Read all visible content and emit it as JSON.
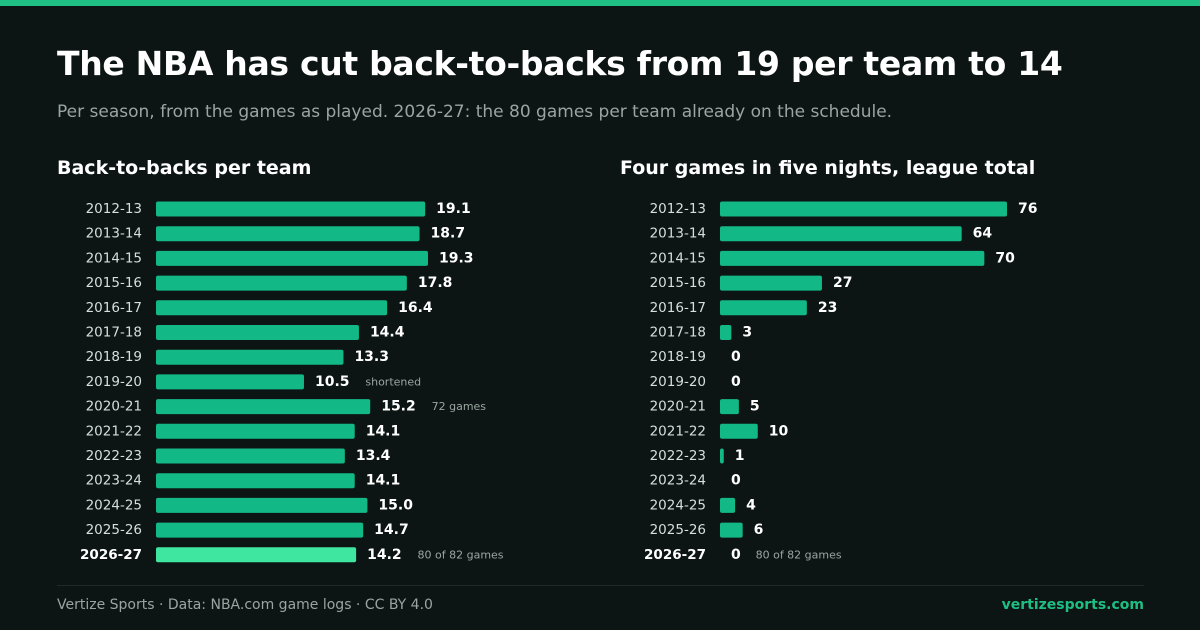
{
  "title": "The NBA has cut back-to-backs from 19 per team to 14",
  "subtitle": "Per season, from the games as played. 2026-27: the 80 games per team already on the schedule.",
  "footer": {
    "credit": "Vertize Sports · Data: NBA.com game logs · CC BY 4.0",
    "site": "vertizesports.com"
  },
  "colors": {
    "bar": "#12b886",
    "highlight": "#3ee6a0",
    "accent": "#1fbf83",
    "background": "#0c1513"
  },
  "chart_data": [
    {
      "type": "bar",
      "orientation": "horizontal",
      "title": "Back-to-backs per team",
      "categories": [
        "2012-13",
        "2013-14",
        "2014-15",
        "2015-16",
        "2016-17",
        "2017-18",
        "2018-19",
        "2019-20",
        "2020-21",
        "2021-22",
        "2022-23",
        "2023-24",
        "2024-25",
        "2025-26",
        "2026-27"
      ],
      "values": [
        19.1,
        18.7,
        19.3,
        17.8,
        16.4,
        14.4,
        13.3,
        10.5,
        15.2,
        14.1,
        13.4,
        14.1,
        15.0,
        14.7,
        14.2
      ],
      "value_labels": [
        "19.1",
        "18.7",
        "19.3",
        "17.8",
        "16.4",
        "14.4",
        "13.3",
        "10.5",
        "15.2",
        "14.1",
        "13.4",
        "14.1",
        "15.0",
        "14.7",
        "14.2"
      ],
      "notes": [
        "",
        "",
        "",
        "",
        "",
        "",
        "",
        "shortened",
        "72 games",
        "",
        "",
        "",
        "",
        "",
        "80 of 82 games"
      ],
      "highlight_index": 14,
      "xlim": [
        0,
        19.3
      ]
    },
    {
      "type": "bar",
      "orientation": "horizontal",
      "title": "Four games in five nights, league total",
      "categories": [
        "2012-13",
        "2013-14",
        "2014-15",
        "2015-16",
        "2016-17",
        "2017-18",
        "2018-19",
        "2019-20",
        "2020-21",
        "2021-22",
        "2022-23",
        "2023-24",
        "2024-25",
        "2025-26",
        "2026-27"
      ],
      "values": [
        76,
        64,
        70,
        27,
        23,
        3,
        0,
        0,
        5,
        10,
        1,
        0,
        4,
        6,
        0
      ],
      "value_labels": [
        "76",
        "64",
        "70",
        "27",
        "23",
        "3",
        "0",
        "0",
        "5",
        "10",
        "1",
        "0",
        "4",
        "6",
        "0"
      ],
      "notes": [
        "",
        "",
        "",
        "",
        "",
        "",
        "",
        "",
        "",
        "",
        "",
        "",
        "",
        "",
        "80 of 82 games"
      ],
      "highlight_index": 14,
      "xlim": [
        0,
        76
      ]
    }
  ]
}
